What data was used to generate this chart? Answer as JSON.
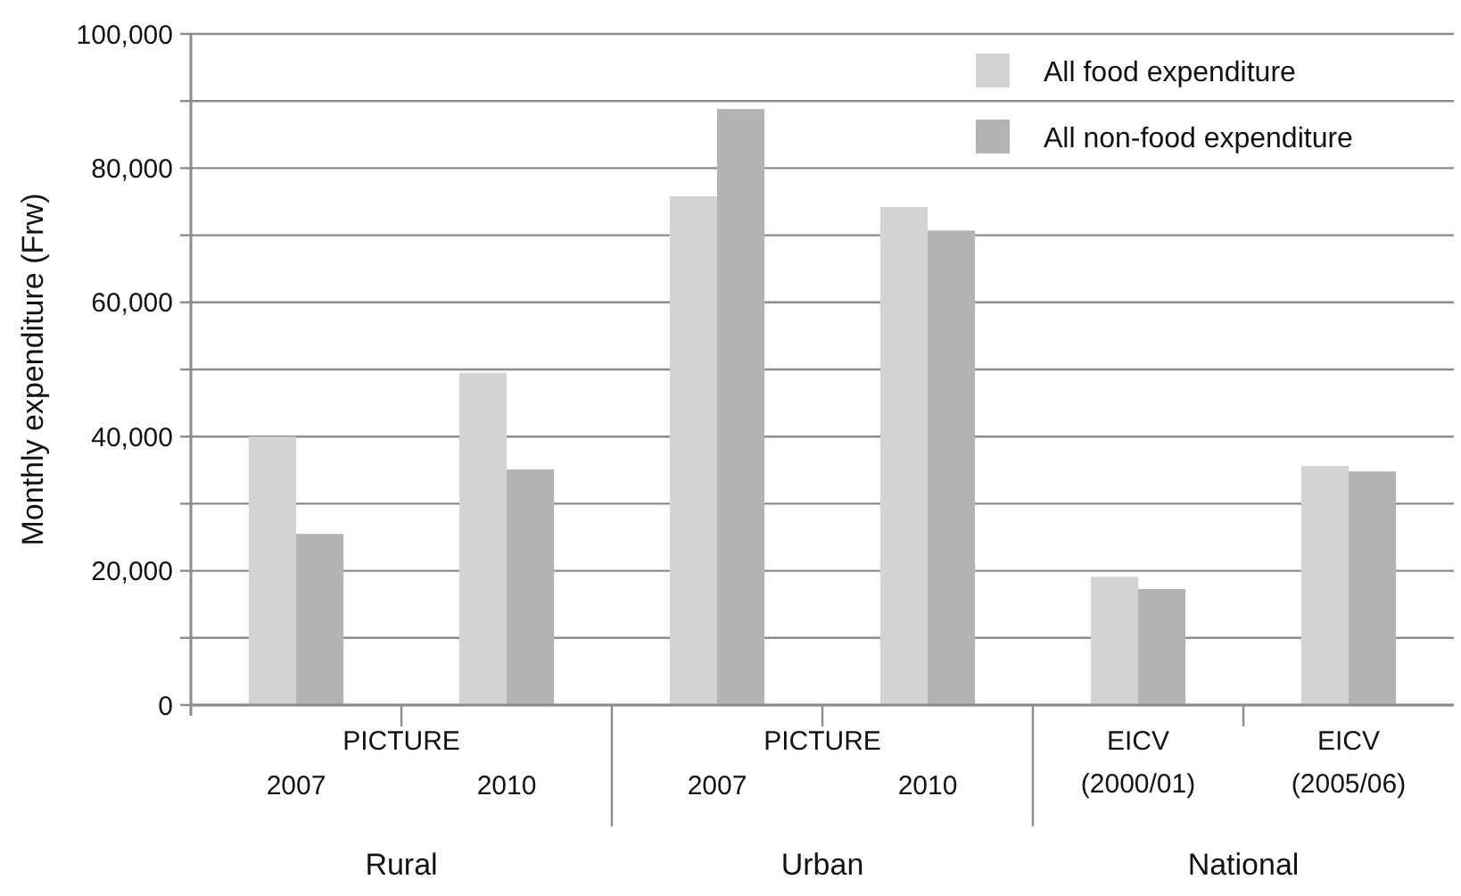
{
  "chart_data": {
    "type": "bar",
    "ylabel": "Monthly expenditure (Frw)",
    "categories": [
      "2007",
      "2010",
      "2007",
      "2010",
      "EICV\n(2000/01)",
      "EICV\n(2005/06)"
    ],
    "series": [
      {
        "name": "All food expenditure",
        "color": "#d3d3d3",
        "values": [
          40000,
          49500,
          75800,
          74200,
          19100,
          35600
        ]
      },
      {
        "name": "All non-food expenditure",
        "color": "#b3b3b3",
        "values": [
          25500,
          35100,
          88800,
          70700,
          17300,
          34800
        ]
      }
    ],
    "ylim": [
      0,
      100000
    ],
    "yticks": [
      0,
      {
        "value": 10000,
        "label": null
      },
      {
        "value": 20000,
        "label": "20,000"
      },
      {
        "value": 30000,
        "label": null
      },
      {
        "value": 40000,
        "label": "40,000"
      },
      {
        "value": 50000,
        "label": null
      },
      {
        "value": 60000,
        "label": "60,000"
      },
      {
        "value": 70000,
        "label": null
      },
      {
        "value": 80000,
        "label": "80,000"
      },
      {
        "value": 90000,
        "label": null
      },
      {
        "value": 100000,
        "label": "100,000"
      }
    ],
    "grid": "y",
    "legend": "top right",
    "annotations": [
      "PICTURE",
      "PICTURE",
      "Rural",
      "Urban",
      "National"
    ]
  }
}
